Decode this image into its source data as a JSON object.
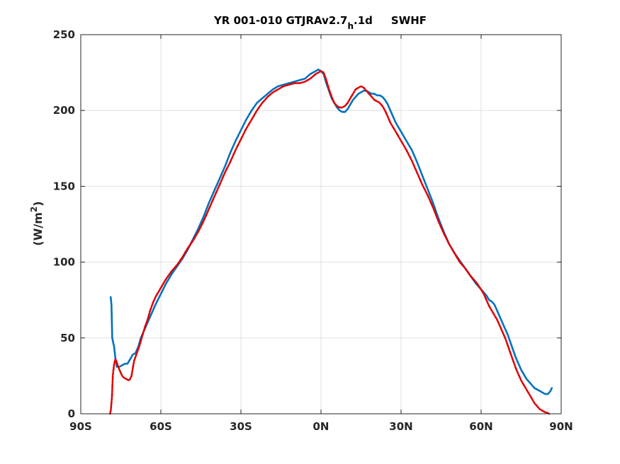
{
  "chart_data": {
    "type": "line",
    "title": {
      "main": "YR 001-010 GTJRAv2.7",
      "subscript": "h",
      "after_subscript": ".1d",
      "field": "SWHF"
    },
    "ylabel": {
      "base": "(W/m",
      "superscript": "2",
      "close": ")"
    },
    "xlabel": "",
    "xlim": [
      -90,
      90
    ],
    "ylim": [
      0,
      250
    ],
    "x_ticks": [
      {
        "value": -90,
        "label": "90S"
      },
      {
        "value": -60,
        "label": "60S"
      },
      {
        "value": -30,
        "label": "30S"
      },
      {
        "value": 0,
        "label": "0N"
      },
      {
        "value": 30,
        "label": "30N"
      },
      {
        "value": 60,
        "label": "60N"
      },
      {
        "value": 90,
        "label": "90N"
      }
    ],
    "y_ticks": [
      {
        "value": 0,
        "label": "0"
      },
      {
        "value": 50,
        "label": "50"
      },
      {
        "value": 100,
        "label": "100"
      },
      {
        "value": 150,
        "label": "150"
      },
      {
        "value": 200,
        "label": "200"
      },
      {
        "value": 250,
        "label": "250"
      }
    ],
    "grid": true,
    "series": [
      {
        "color": "#0072bd",
        "style": "solid",
        "points": [
          [
            -78.8,
            77
          ],
          [
            -78.5,
            72
          ],
          [
            -78.2,
            50
          ],
          [
            -77.5,
            44
          ],
          [
            -77,
            36
          ],
          [
            -76.5,
            31
          ],
          [
            -75.5,
            31
          ],
          [
            -74.5,
            32
          ],
          [
            -73.5,
            33
          ],
          [
            -72.5,
            33
          ],
          [
            -71.5,
            36
          ],
          [
            -70.5,
            39
          ],
          [
            -69.5,
            40
          ],
          [
            -68.5,
            44
          ],
          [
            -67.5,
            50
          ],
          [
            -66,
            56
          ],
          [
            -64,
            64
          ],
          [
            -62,
            72
          ],
          [
            -60,
            79
          ],
          [
            -58,
            86
          ],
          [
            -56,
            92
          ],
          [
            -54,
            97
          ],
          [
            -52,
            102
          ],
          [
            -50,
            108
          ],
          [
            -48,
            115
          ],
          [
            -46,
            122
          ],
          [
            -44,
            130
          ],
          [
            -42,
            139
          ],
          [
            -40,
            147
          ],
          [
            -38,
            155
          ],
          [
            -36,
            163
          ],
          [
            -34,
            172
          ],
          [
            -32,
            180
          ],
          [
            -30,
            187
          ],
          [
            -28,
            194
          ],
          [
            -26,
            200
          ],
          [
            -24,
            205
          ],
          [
            -22,
            208
          ],
          [
            -20,
            211
          ],
          [
            -18,
            214
          ],
          [
            -16,
            216
          ],
          [
            -14,
            217
          ],
          [
            -12,
            218
          ],
          [
            -10,
            219
          ],
          [
            -8,
            220
          ],
          [
            -6,
            221
          ],
          [
            -4,
            224
          ],
          [
            -2,
            226
          ],
          [
            -1,
            227
          ],
          [
            0,
            226
          ],
          [
            1,
            224
          ],
          [
            2,
            218
          ],
          [
            3,
            213
          ],
          [
            4,
            208
          ],
          [
            5,
            205
          ],
          [
            6,
            202
          ],
          [
            7,
            200
          ],
          [
            8,
            199
          ],
          [
            9,
            199
          ],
          [
            10,
            201
          ],
          [
            11,
            204
          ],
          [
            12,
            207
          ],
          [
            13,
            209
          ],
          [
            14,
            211
          ],
          [
            15,
            212
          ],
          [
            16,
            213
          ],
          [
            17,
            213
          ],
          [
            18,
            212
          ],
          [
            19,
            211
          ],
          [
            20,
            211
          ],
          [
            21,
            210
          ],
          [
            22,
            210
          ],
          [
            23,
            209
          ],
          [
            24,
            207
          ],
          [
            25,
            204
          ],
          [
            26,
            200
          ],
          [
            27,
            196
          ],
          [
            28,
            192
          ],
          [
            30,
            186
          ],
          [
            32,
            180
          ],
          [
            34,
            174
          ],
          [
            36,
            166
          ],
          [
            38,
            157
          ],
          [
            40,
            148
          ],
          [
            42,
            139
          ],
          [
            44,
            129
          ],
          [
            46,
            120
          ],
          [
            48,
            112
          ],
          [
            50,
            106
          ],
          [
            52,
            101
          ],
          [
            54,
            96
          ],
          [
            56,
            91
          ],
          [
            58,
            86
          ],
          [
            60,
            82
          ],
          [
            62,
            78
          ],
          [
            63,
            75
          ],
          [
            64,
            74
          ],
          [
            65,
            72
          ],
          [
            66,
            68
          ],
          [
            67,
            64
          ],
          [
            68,
            60
          ],
          [
            69,
            56
          ],
          [
            70,
            52
          ],
          [
            71,
            47
          ],
          [
            72,
            42
          ],
          [
            73,
            37
          ],
          [
            74,
            33
          ],
          [
            75,
            29
          ],
          [
            76,
            26
          ],
          [
            77,
            23
          ],
          [
            78,
            21
          ],
          [
            79,
            19
          ],
          [
            80,
            17
          ],
          [
            81,
            16
          ],
          [
            82,
            15
          ],
          [
            83,
            14
          ],
          [
            84,
            13
          ],
          [
            85,
            13
          ],
          [
            86,
            15
          ],
          [
            86.5,
            17
          ]
        ]
      },
      {
        "color": "#e00000",
        "style": "dashed",
        "points": [
          [
            -79,
            0
          ],
          [
            -78.7,
            3
          ],
          [
            -78.3,
            12
          ],
          [
            -78,
            25
          ],
          [
            -77.5,
            33
          ],
          [
            -77,
            36
          ],
          [
            -76.5,
            34
          ],
          [
            -76,
            31
          ],
          [
            -75.5,
            29
          ],
          [
            -75,
            27
          ],
          [
            -74.5,
            25
          ],
          [
            -74,
            24
          ],
          [
            -73,
            23
          ],
          [
            -72,
            22
          ],
          [
            -71.5,
            23
          ],
          [
            -71,
            25
          ],
          [
            -70.5,
            30
          ],
          [
            -70,
            35
          ],
          [
            -69,
            40
          ],
          [
            -68,
            45
          ],
          [
            -67,
            51
          ],
          [
            -66,
            57
          ],
          [
            -65,
            62
          ],
          [
            -64,
            68
          ],
          [
            -63,
            73
          ],
          [
            -62,
            77
          ],
          [
            -60,
            83
          ],
          [
            -58,
            89
          ],
          [
            -56,
            94
          ],
          [
            -54,
            98
          ],
          [
            -52,
            103
          ],
          [
            -50,
            109
          ],
          [
            -48,
            114
          ],
          [
            -46,
            120
          ],
          [
            -44,
            127
          ],
          [
            -42,
            135
          ],
          [
            -40,
            143
          ],
          [
            -38,
            151
          ],
          [
            -36,
            159
          ],
          [
            -34,
            166
          ],
          [
            -32,
            174
          ],
          [
            -30,
            181
          ],
          [
            -28,
            188
          ],
          [
            -26,
            194
          ],
          [
            -24,
            200
          ],
          [
            -22,
            205
          ],
          [
            -20,
            209
          ],
          [
            -18,
            212
          ],
          [
            -16,
            214
          ],
          [
            -14,
            216
          ],
          [
            -12,
            217
          ],
          [
            -10,
            218
          ],
          [
            -8,
            218
          ],
          [
            -6,
            219
          ],
          [
            -4,
            221
          ],
          [
            -2,
            224
          ],
          [
            0,
            226
          ],
          [
            1,
            225
          ],
          [
            2,
            220
          ],
          [
            3,
            214
          ],
          [
            4,
            209
          ],
          [
            5,
            205
          ],
          [
            6,
            203
          ],
          [
            7,
            202
          ],
          [
            8,
            202
          ],
          [
            9,
            203
          ],
          [
            10,
            205
          ],
          [
            11,
            208
          ],
          [
            12,
            211
          ],
          [
            13,
            214
          ],
          [
            14,
            215
          ],
          [
            15,
            216
          ],
          [
            16,
            215
          ],
          [
            17,
            213
          ],
          [
            18,
            211
          ],
          [
            19,
            209
          ],
          [
            20,
            207
          ],
          [
            21,
            206
          ],
          [
            22,
            205
          ],
          [
            23,
            203
          ],
          [
            24,
            200
          ],
          [
            25,
            196
          ],
          [
            26,
            192
          ],
          [
            27,
            189
          ],
          [
            28,
            186
          ],
          [
            29,
            183
          ],
          [
            30,
            180
          ],
          [
            32,
            174
          ],
          [
            34,
            167
          ],
          [
            36,
            159
          ],
          [
            38,
            151
          ],
          [
            40,
            144
          ],
          [
            42,
            136
          ],
          [
            44,
            127
          ],
          [
            46,
            119
          ],
          [
            48,
            112
          ],
          [
            50,
            106
          ],
          [
            52,
            100
          ],
          [
            54,
            96
          ],
          [
            56,
            91
          ],
          [
            58,
            87
          ],
          [
            60,
            82
          ],
          [
            61,
            79
          ],
          [
            62,
            75
          ],
          [
            63,
            71
          ],
          [
            64,
            68
          ],
          [
            65,
            65
          ],
          [
            66,
            62
          ],
          [
            67,
            58
          ],
          [
            68,
            54
          ],
          [
            69,
            50
          ],
          [
            70,
            45
          ],
          [
            71,
            40
          ],
          [
            72,
            35
          ],
          [
            73,
            30
          ],
          [
            74,
            26
          ],
          [
            75,
            22
          ],
          [
            76,
            19
          ],
          [
            77,
            16
          ],
          [
            78,
            13
          ],
          [
            79,
            10
          ],
          [
            80,
            7
          ],
          [
            81,
            5
          ],
          [
            82,
            3
          ],
          [
            83,
            2
          ],
          [
            84,
            1
          ],
          [
            85,
            0.5
          ],
          [
            85.5,
            0
          ]
        ]
      }
    ]
  }
}
